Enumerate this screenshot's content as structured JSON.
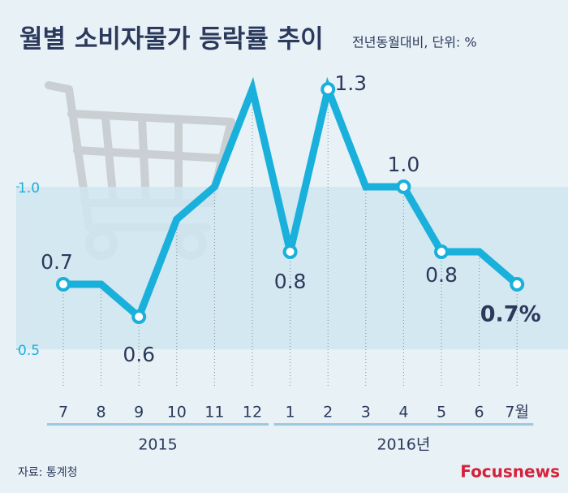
{
  "chart_data": {
    "type": "line",
    "title": "월별 소비자물가 등락률 추이",
    "subtitle": "전년동월대비, 단위: %",
    "categories": [
      "7",
      "8",
      "9",
      "10",
      "11",
      "12",
      "1",
      "2",
      "3",
      "4",
      "5",
      "6",
      "7월"
    ],
    "year_labels": [
      "2015",
      "2016년"
    ],
    "values": [
      0.7,
      0.7,
      0.6,
      0.9,
      1.0,
      1.3,
      0.8,
      1.3,
      1.0,
      1.0,
      0.8,
      0.8,
      0.7
    ],
    "value_labels": [
      "0.7",
      null,
      "0.6",
      null,
      null,
      null,
      "0.8",
      "1.3",
      null,
      "1.0",
      "0.8",
      null,
      "0.7%"
    ],
    "color": "#1ab0dc",
    "ylim": [
      0.3,
      1.5
    ],
    "yticks": [
      0.5,
      {
        "value": 1.0,
        "label": "1.0"
      }
    ],
    "source": "자료: 통계청",
    "brand": "Focusnews"
  }
}
